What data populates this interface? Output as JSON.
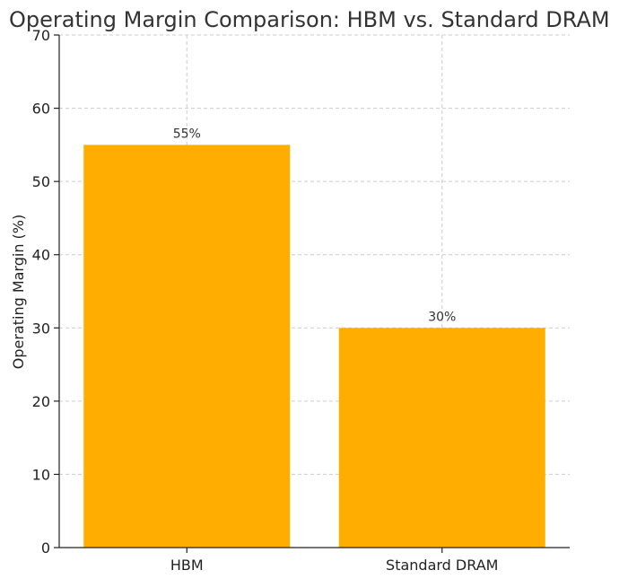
{
  "chart_data": {
    "type": "bar",
    "title": "Operating Margin Comparison: HBM vs. Standard DRAM",
    "categories": [
      "HBM",
      "Standard DRAM"
    ],
    "values": [
      55,
      30
    ],
    "data_labels": [
      "55%",
      "30%"
    ],
    "xlabel": "",
    "ylabel": "Operating Margin (%)",
    "ylim": [
      0,
      70
    ],
    "yticks": [
      0,
      10,
      20,
      30,
      40,
      50,
      60,
      70
    ],
    "grid": true,
    "bar_color": "#FFAE00"
  }
}
